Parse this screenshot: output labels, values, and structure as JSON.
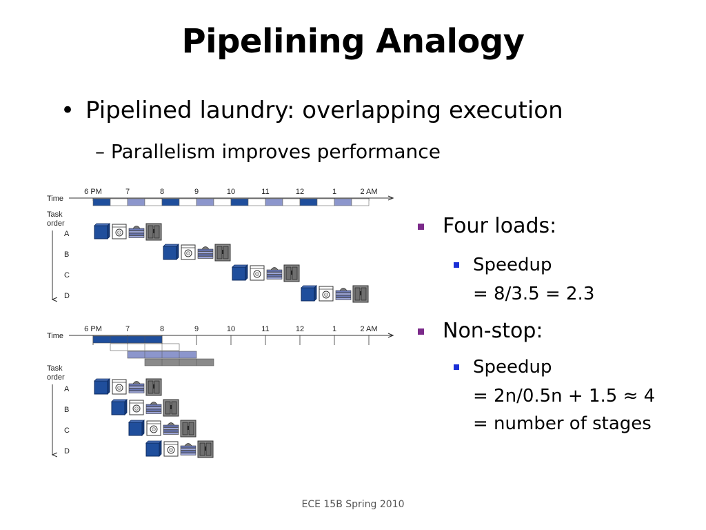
{
  "slide": {
    "title": "Pipelining Analogy",
    "bullet": "Pipelined laundry: overlapping execution",
    "sub_bullet": "– Parallelism improves performance",
    "footer": "ECE 15B Spring 2010"
  },
  "right_column": {
    "four_loads": {
      "heading": "Four loads:",
      "line1": "Speedup",
      "line2": "= 8/3.5 = 2.3"
    },
    "non_stop": {
      "heading": "Non-stop:",
      "line1": "Speedup",
      "line2": "= 2n/0.5n + 1.5 ≈ 4",
      "line3": "= number of stages"
    }
  },
  "diagram": {
    "time_label": "Time",
    "task_order_label": [
      "Task",
      "order"
    ],
    "time_ticks": [
      "6 PM",
      "7",
      "8",
      "9",
      "10",
      "11",
      "12",
      "1",
      "2 AM"
    ],
    "tasks": [
      "A",
      "B",
      "C",
      "D"
    ],
    "stages": [
      "washer-icon",
      "dryer-icon",
      "folding-icon",
      "closet-icon"
    ],
    "colors": {
      "wash": "#1f4e9c",
      "dry": "#ffffff",
      "fold": "#8c96cc",
      "store": "#8a8a8a",
      "axis": "#333333"
    }
  }
}
